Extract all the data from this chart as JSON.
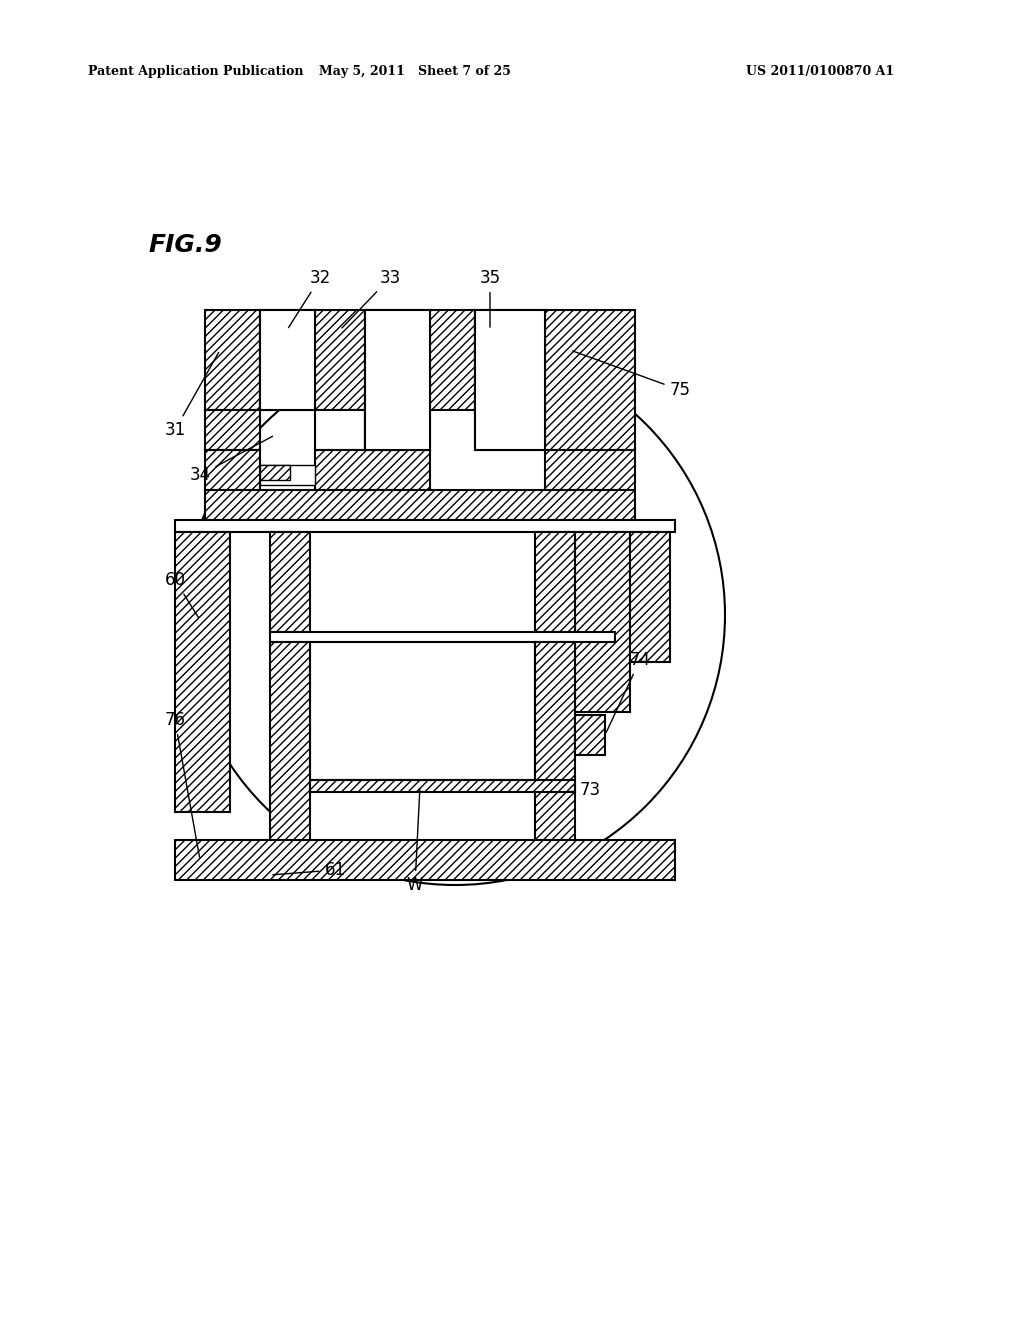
{
  "title": "FIG.9",
  "header_left": "Patent Application Publication",
  "header_mid": "May 5, 2011   Sheet 7 of 25",
  "header_right": "US 2011/0100870 A1",
  "bg_color": "#ffffff",
  "lw": 1.5,
  "lw_thin": 1.0,
  "lw_thick": 2.0,
  "fig_label_fontsize": 18,
  "header_fontsize": 9,
  "annot_fontsize": 12
}
